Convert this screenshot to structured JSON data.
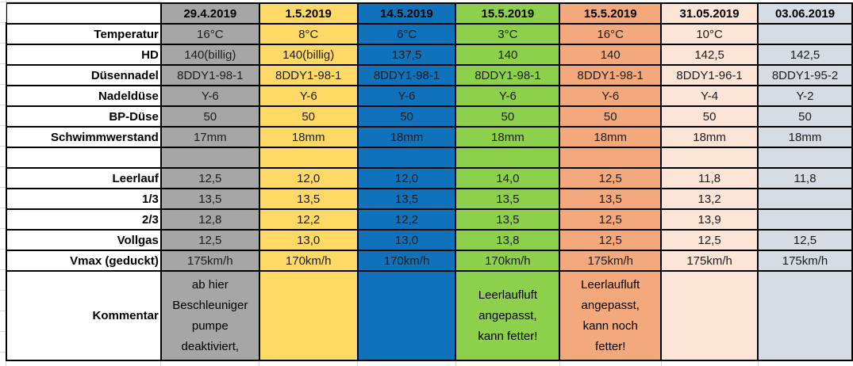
{
  "table": {
    "columns": [
      {
        "header": "29.4.2019",
        "color": "#a6a6a6"
      },
      {
        "header": "1.5.2019",
        "color": "#ffd966"
      },
      {
        "header": "14.5.2019",
        "color": "#1072ba"
      },
      {
        "header": "15.5.2019",
        "color": "#8dd04b"
      },
      {
        "header": "15.5.2019",
        "color": "#f4a97c"
      },
      {
        "header": "31.05.2019",
        "color": "#fce4d6"
      },
      {
        "header": "03.06.2019",
        "color": "#d6dce4"
      }
    ],
    "rows": [
      {
        "label": "Temperatur",
        "values": [
          "16°C",
          "8°C",
          "6°C",
          "3°C",
          "16°C",
          "10°C",
          ""
        ]
      },
      {
        "label": "HD",
        "values": [
          "140(billig)",
          "140(billig)",
          "137,5",
          "140",
          "140",
          "142,5",
          "142,5"
        ]
      },
      {
        "label": "Düsennadel",
        "values": [
          "8DDY1-98-1",
          "8DDY1-98-1",
          "8DDY1-98-1",
          "8DDY1-98-1",
          "8DDY1-98-1",
          "8DDY1-96-1",
          "8DDY1-95-2"
        ]
      },
      {
        "label": "Nadeldüse",
        "values": [
          "Y-6",
          "Y-6",
          "Y-6",
          "Y-6",
          "Y-6",
          "Y-4",
          "Y-2"
        ]
      },
      {
        "label": "BP-Düse",
        "values": [
          "50",
          "50",
          "50",
          "50",
          "50",
          "50",
          "50"
        ]
      },
      {
        "label": "Schwimmwerstand",
        "values": [
          "17mm",
          "18mm",
          "18mm",
          "18mm",
          "18mm",
          "18mm",
          "18mm"
        ]
      },
      {
        "label": "",
        "spacer": true,
        "values": [
          "",
          "",
          "",
          "",
          "",
          "",
          ""
        ]
      },
      {
        "label": "Leerlauf",
        "values": [
          "12,5",
          "12,0",
          "12,0",
          "14,0",
          "12,5",
          "11,8",
          "11,8"
        ]
      },
      {
        "label": "1/3",
        "values": [
          "13,5",
          "13,5",
          "13,5",
          "13,5",
          "13,5",
          "13,2",
          ""
        ]
      },
      {
        "label": "2/3",
        "values": [
          "12,8",
          "12,2",
          "12,2",
          "13,5",
          "12,5",
          "13,9",
          ""
        ]
      },
      {
        "label": "Vollgas",
        "values": [
          "12,5",
          "13,0",
          "13,0",
          "13,8",
          "12,5",
          "12,5",
          "12,5"
        ]
      },
      {
        "label": "Vmax (geduckt)",
        "values": [
          "175km/h",
          "170km/h",
          "170km/h",
          "170km/h",
          "175km/h",
          "175km/h",
          "175km/h"
        ]
      },
      {
        "label": "Kommentar",
        "comment": true,
        "values": [
          "ab hier\nBeschleuniger\npumpe\ndeaktiviert,",
          "",
          "",
          "Leerlaufluft\nangepasst,\nkann fetter!",
          "Leerlaufluft\nangepasst,\nkann noch\nfetter!",
          "",
          ""
        ]
      }
    ]
  }
}
